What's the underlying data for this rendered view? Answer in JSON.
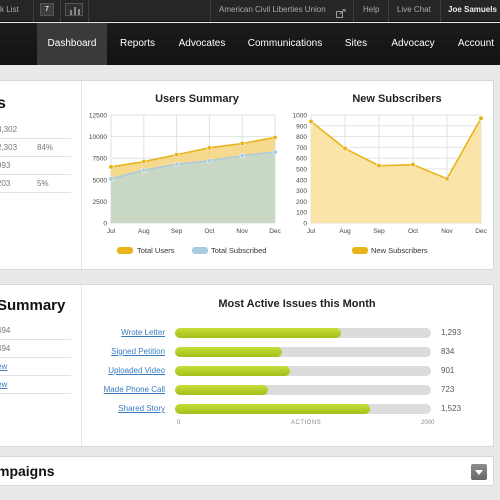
{
  "topbar": {
    "left_label": "k List",
    "count_badge": "7",
    "org_name": "American Civil Liberties Union",
    "help": "Help",
    "live_chat": "Live Chat",
    "user": "Joe Samuels"
  },
  "nav": {
    "items": [
      "Dashboard",
      "Reports",
      "Advocates",
      "Communications",
      "Sites",
      "Advocacy",
      "Account"
    ],
    "active": "Dashboard"
  },
  "stats_panel": {
    "title_fragment": "s",
    "rows": [
      {
        "value": "3,302",
        "pct": ""
      },
      {
        "value": "2,303",
        "pct": "84%"
      },
      {
        "value": "993",
        "pct": ""
      },
      {
        "value": "203",
        "pct": "5%"
      }
    ]
  },
  "summary_panel": {
    "title_fragment": "Summary",
    "rows": [
      "494",
      "494",
      "ew",
      "ew"
    ]
  },
  "campaigns_panel": {
    "title_fragment": "mpaigns"
  },
  "colors": {
    "users_fill": "#f3d27a",
    "users_line": "#e8b41b",
    "subscribed_fill": "#c5d8c8",
    "subscribed_line": "#a7cbe0",
    "new_subs_fill": "#fbe3a3",
    "new_subs_line": "#e8b41b",
    "bar_fill": "#b5cf24"
  },
  "chart_data": [
    {
      "type": "area",
      "title": "Users Summary",
      "categories": [
        "Jul",
        "Aug",
        "Sep",
        "Oct",
        "Nov",
        "Dec"
      ],
      "ylim": [
        0,
        12500
      ],
      "yticks": [
        "0",
        "2500",
        "5000",
        "7500",
        "10000",
        "12500"
      ],
      "grid": true,
      "series": [
        {
          "name": "Total Users",
          "values": [
            6500,
            7100,
            7900,
            8700,
            9200,
            9900
          ]
        },
        {
          "name": "Total Subscribed",
          "values": [
            5100,
            6100,
            6800,
            7200,
            7800,
            8200
          ]
        }
      ],
      "legend": "bottom"
    },
    {
      "type": "area",
      "title": "New Subscribers",
      "categories": [
        "Jul",
        "Aug",
        "Sep",
        "Oct",
        "Nov",
        "Dec"
      ],
      "ylim": [
        0,
        1000
      ],
      "yticks": [
        "0",
        "100",
        "200",
        "300",
        "400",
        "500",
        "600",
        "700",
        "800",
        "900",
        "1000"
      ],
      "grid": true,
      "series": [
        {
          "name": "New Subscribers",
          "values": [
            940,
            690,
            530,
            540,
            410,
            970
          ]
        }
      ],
      "legend": "bottom"
    },
    {
      "type": "bar",
      "title": "Most Active Issues this Month",
      "categories": [
        "Wrote Letter",
        "Signed Petition",
        "Uploaded Video",
        "Made Phone Call",
        "Shared Story"
      ],
      "values": [
        1293,
        834,
        901,
        723,
        1523
      ],
      "value_labels": [
        "1,293",
        "834",
        "901",
        "723",
        "1,523"
      ],
      "ylim": [
        0,
        2000
      ],
      "axis_min_label": "0",
      "axis_max_label": "2000",
      "xlabel": "ACTIONS",
      "orientation": "horizontal"
    }
  ]
}
